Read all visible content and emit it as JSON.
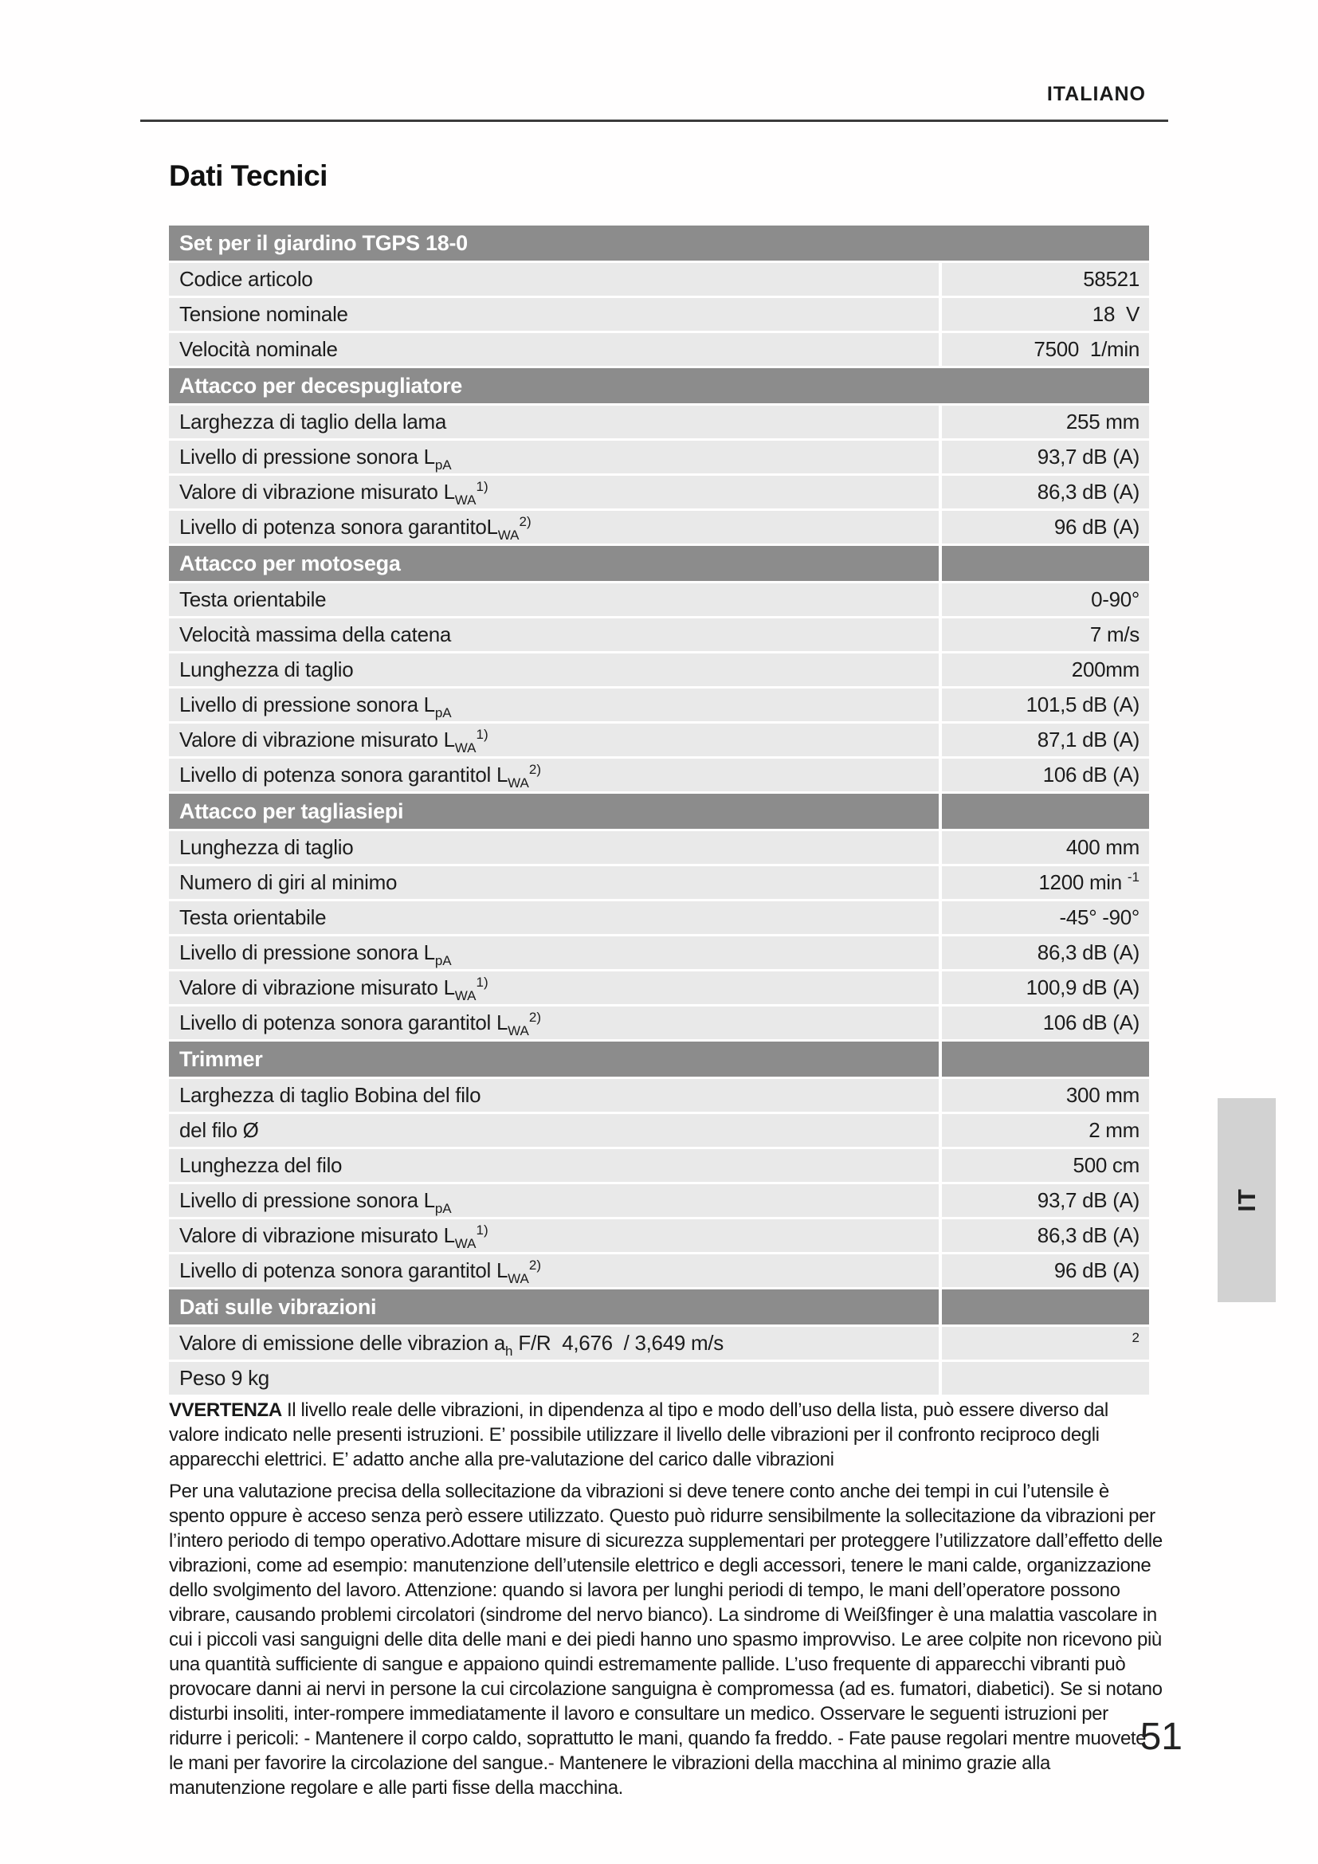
{
  "page": {
    "language_header": "ITALIANO",
    "title": "Dati Tecnici",
    "page_number": "51",
    "side_tab_label": "IT"
  },
  "colors": {
    "section_header_bg": "#8c8c8c",
    "row_bg": "#e9e9e9",
    "tab_bg": "#d2d2d2"
  },
  "table": {
    "sections": [
      {
        "header": "Set per il giardino TGPS 18-0",
        "split": false,
        "rows": [
          {
            "label": [
              {
                "t": "Codice articolo"
              }
            ],
            "value": [
              {
                "t": "58521"
              }
            ]
          },
          {
            "label": [
              {
                "t": "Tensione nominale"
              }
            ],
            "value": [
              {
                "t": "18  V"
              }
            ]
          },
          {
            "label": [
              {
                "t": "Velocità nominale"
              }
            ],
            "value": [
              {
                "t": "7500  1/min"
              }
            ]
          }
        ]
      },
      {
        "header": "Attacco per decespugliatore",
        "split": false,
        "rows": [
          {
            "label": [
              {
                "t": "Larghezza di taglio della lama"
              }
            ],
            "value": [
              {
                "t": "255 mm"
              }
            ]
          },
          {
            "label": [
              {
                "t": "Livello di pressione sonora L"
              },
              {
                "sub": "pA"
              }
            ],
            "value": [
              {
                "t": "93,7 dB (A)"
              }
            ]
          },
          {
            "label": [
              {
                "t": "Valore di vibrazione misurato L"
              },
              {
                "sub": "WA"
              },
              {
                "sup": "1)"
              }
            ],
            "value": [
              {
                "t": "86,3 dB (A)"
              }
            ]
          },
          {
            "label": [
              {
                "t": "Livello di potenza sonora garantitoL"
              },
              {
                "sub": "WA"
              },
              {
                "sup": "2)"
              }
            ],
            "value": [
              {
                "t": "96 dB (A)"
              }
            ]
          }
        ]
      },
      {
        "header": "Attacco per motosega",
        "split": true,
        "rows": [
          {
            "label": [
              {
                "t": "Testa orientabile"
              }
            ],
            "value": [
              {
                "t": "0-90°"
              }
            ]
          },
          {
            "label": [
              {
                "t": "Velocità massima della catena"
              }
            ],
            "value": [
              {
                "t": "7 m/s"
              }
            ]
          },
          {
            "label": [
              {
                "t": "Lunghezza di taglio"
              }
            ],
            "value": [
              {
                "t": "200mm"
              }
            ]
          },
          {
            "label": [
              {
                "t": "Livello di pressione sonora L"
              },
              {
                "sub": "pA"
              }
            ],
            "value": [
              {
                "t": "101,5 dB (A)"
              }
            ]
          },
          {
            "label": [
              {
                "t": "Valore di vibrazione misurato L"
              },
              {
                "sub": "WA"
              },
              {
                "sup": "1)"
              }
            ],
            "value": [
              {
                "t": "87,1 dB (A)"
              }
            ]
          },
          {
            "label": [
              {
                "t": "Livello di potenza sonora garantitol L"
              },
              {
                "sub": "WA"
              },
              {
                "sup": "2)"
              }
            ],
            "value": [
              {
                "t": "106 dB (A)"
              }
            ]
          }
        ]
      },
      {
        "header": "Attacco per tagliasiepi",
        "split": true,
        "rows": [
          {
            "label": [
              {
                "t": "Lunghezza di taglio"
              }
            ],
            "value": [
              {
                "t": "400 mm"
              }
            ]
          },
          {
            "label": [
              {
                "t": "Numero di giri al minimo"
              }
            ],
            "value": [
              {
                "t": "1200 min "
              },
              {
                "sup": "-1"
              }
            ]
          },
          {
            "label": [
              {
                "t": "Testa orientabile"
              }
            ],
            "value": [
              {
                "t": "-45° -90°"
              }
            ]
          },
          {
            "label": [
              {
                "t": "Livello di pressione sonora L"
              },
              {
                "sub": "pA"
              }
            ],
            "value": [
              {
                "t": "86,3 dB (A)"
              }
            ]
          },
          {
            "label": [
              {
                "t": "Valore di vibrazione misurato L"
              },
              {
                "sub": "WA"
              },
              {
                "sup": "1)"
              }
            ],
            "value": [
              {
                "t": "100,9 dB (A)"
              }
            ]
          },
          {
            "label": [
              {
                "t": "Livello di potenza sonora garantitol L"
              },
              {
                "sub": "WA"
              },
              {
                "sup": "2)"
              }
            ],
            "value": [
              {
                "t": "106 dB (A)"
              }
            ]
          }
        ]
      },
      {
        "header": "Trimmer",
        "split": true,
        "rows": [
          {
            "label": [
              {
                "t": "Larghezza di taglio Bobina del filo"
              }
            ],
            "value": [
              {
                "t": "300 mm"
              }
            ]
          },
          {
            "label": [
              {
                "t": "del filo Ø"
              }
            ],
            "value": [
              {
                "t": "2 mm"
              }
            ]
          },
          {
            "label": [
              {
                "t": "Lunghezza del filo"
              }
            ],
            "value": [
              {
                "t": "500 cm"
              }
            ]
          },
          {
            "label": [
              {
                "t": "Livello di pressione sonora L"
              },
              {
                "sub": "pA"
              }
            ],
            "value": [
              {
                "t": "93,7 dB (A)"
              }
            ]
          },
          {
            "label": [
              {
                "t": "Valore di vibrazione misurato L"
              },
              {
                "sub": "WA"
              },
              {
                "sup": "1)"
              }
            ],
            "value": [
              {
                "t": "86,3 dB (A)"
              }
            ]
          },
          {
            "label": [
              {
                "t": "Livello di potenza sonora garantitol L"
              },
              {
                "sub": "WA"
              },
              {
                "sup": "2)"
              }
            ],
            "value": [
              {
                "t": "96 dB (A)"
              }
            ]
          }
        ]
      },
      {
        "header": "Dati sulle vibrazioni",
        "split": true,
        "rows": [
          {
            "label": [
              {
                "t": "Valore di emissione delle vibrazion a"
              },
              {
                "sub": "h"
              },
              {
                "t": " F/R  4,676  / 3,649 m/s"
              }
            ],
            "value": [
              {
                "sup": "2"
              }
            ]
          },
          {
            "label": [
              {
                "t": "Peso 9 kg"
              }
            ],
            "value": []
          }
        ]
      }
    ]
  },
  "paragraphs": {
    "warning_bold": "VVERTENZA",
    "p1": "Il livello reale delle vibrazioni, in dipendenza al tipo e modo dell’uso della lista, può essere diverso dal valore indicato nelle presenti istruzioni. E’ possibile utilizzare il livello delle vibrazioni per il confronto reciproco degli apparecchi elettrici. E’ adatto anche alla pre-valutazione del carico dalle vibrazioni",
    "p2": "Per una valutazione precisa della sollecitazione da vibrazioni si deve tenere conto anche dei tempi in cui l’utensile è spento oppure è acceso senza però essere utilizzato. Questo può ridurre sensibilmente la sollecitazione da vibrazioni per l’intero periodo di tempo operativo.Adottare misure di sicurezza supplementari per proteggere l’utilizzatore dall’effetto delle vibrazioni, come ad esempio: manutenzione dell’utensile elettrico e degli accessori, tenere le mani calde, organizzazione dello svolgimento del lavoro. Attenzione: quando si lavora per lunghi periodi di tempo, le mani dell’operatore possono vibrare, causando problemi circolatori (sindrome del nervo bianco). La sindrome di Weißfinger è una malattia vascolare in cui i piccoli vasi sanguigni delle dita delle mani e dei piedi hanno uno spasmo improvviso. Le aree colpite non ricevono più una quantità sufficiente di sangue e appaiono quindi estremamente pallide. L’uso frequente di apparecchi vibranti può provocare danni ai nervi in persone la cui circolazione sanguigna è compromessa (ad es. fumatori, diabetici). Se si notano disturbi insoliti, inter-rompere immediatamente il lavoro e consultare un medico. Osservare le seguenti istruzioni per ridurre i pericoli: - Mantenere il corpo caldo, soprattutto le mani, quando fa freddo. - Fate pause regolari mentre muovete le mani per favorire la circolazione del sangue.- Mantenere le vibrazioni della macchina al minimo grazie alla manutenzione regolare e alle parti fisse della macchina."
  }
}
